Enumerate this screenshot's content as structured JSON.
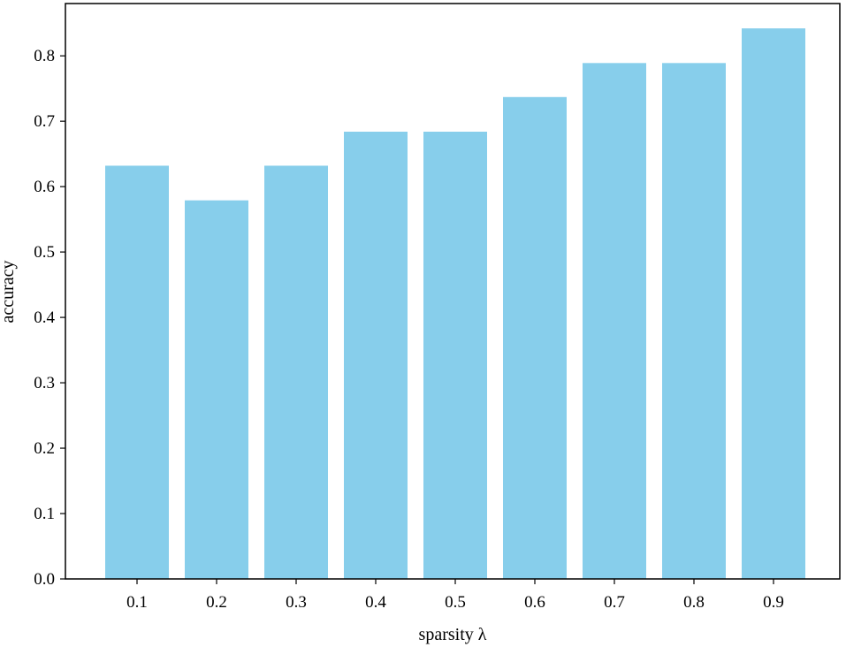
{
  "chart_data": {
    "type": "bar",
    "categories": [
      "0.1",
      "0.2",
      "0.3",
      "0.4",
      "0.5",
      "0.6",
      "0.7",
      "0.8",
      "0.9"
    ],
    "values": [
      0.632,
      0.579,
      0.632,
      0.684,
      0.684,
      0.737,
      0.789,
      0.789,
      0.842
    ],
    "xlabel": "sparsity λ",
    "ylabel": "accuracy",
    "ylim": [
      0,
      0.88
    ],
    "yticks": [
      "0.0",
      "0.1",
      "0.2",
      "0.3",
      "0.4",
      "0.5",
      "0.6",
      "0.7",
      "0.8"
    ],
    "bar_color": "#87ceeb",
    "grid": false
  }
}
